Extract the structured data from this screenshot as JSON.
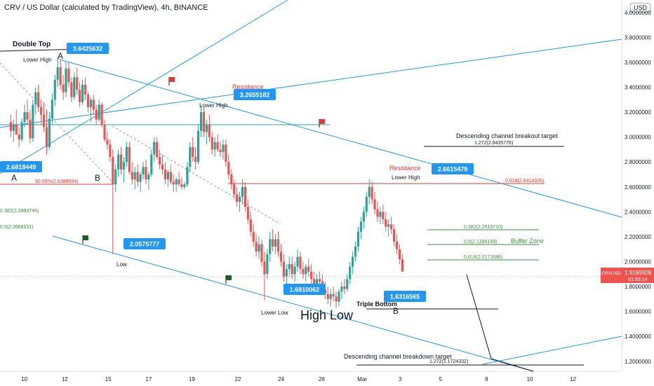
{
  "header": {
    "title": "CRV / US Dollar (calculated by TradingView), 4h, BINANCE"
  },
  "price_scale": {
    "currency": "USD"
  },
  "colors": {
    "up": "#26a69a",
    "down": "#ef5350",
    "line": "#2196f3",
    "label_bg": "#2196f3",
    "fib_green": "#388e3c",
    "fib_red": "#e53935"
  },
  "current_price": {
    "symbol": "CRVUSD",
    "value": "1.9199928",
    "countdown": "01:53:14"
  },
  "chart_data": {
    "type": "candlestick",
    "title": "CRV / US Dollar (calculated by TradingView), 4h, BINANCE",
    "ylim": [
      1.12,
      4.1
    ],
    "y_ticks": [
      "4.0000000",
      "3.8000000",
      "3.6000000",
      "3.4000000",
      "3.2000000",
      "3.0000000",
      "2.8000000",
      "2.6000000",
      "2.4000000",
      "2.2000000",
      "2.0000000",
      "1.8000000",
      "1.6000000",
      "1.4000000",
      "1.2000000"
    ],
    "x_ticks": [
      "10",
      "12",
      "15",
      "17",
      "19",
      "22",
      "24",
      "26",
      "Mar",
      "3",
      "5",
      "8",
      "10",
      "12"
    ],
    "x_tick_index": [
      5,
      20,
      36,
      51,
      67,
      84,
      100,
      115,
      130,
      144,
      159,
      176,
      192,
      208
    ],
    "x_range": [
      -4,
      226
    ],
    "ohlc": [
      [
        3.12,
        3.18,
        3.0,
        3.05
      ],
      [
        3.05,
        3.14,
        2.96,
        3.1
      ],
      [
        3.1,
        3.22,
        3.02,
        3.02
      ],
      [
        3.02,
        3.08,
        2.92,
        2.98
      ],
      [
        2.98,
        3.15,
        2.96,
        3.12
      ],
      [
        3.12,
        3.26,
        3.08,
        3.2
      ],
      [
        3.2,
        3.3,
        3.1,
        3.14
      ],
      [
        3.14,
        3.22,
        2.95,
        2.99
      ],
      [
        2.99,
        3.3,
        2.96,
        3.26
      ],
      [
        3.26,
        3.4,
        3.18,
        3.36
      ],
      [
        3.36,
        3.42,
        3.2,
        3.24
      ],
      [
        3.24,
        3.3,
        3.1,
        3.18
      ],
      [
        3.18,
        3.28,
        3.04,
        3.08
      ],
      [
        3.08,
        3.22,
        2.86,
        2.92
      ],
      [
        2.92,
        3.2,
        2.9,
        3.15
      ],
      [
        3.15,
        3.35,
        3.1,
        3.3
      ],
      [
        3.3,
        3.5,
        3.25,
        3.46
      ],
      [
        3.46,
        3.64,
        3.4,
        3.56
      ],
      [
        3.56,
        3.62,
        3.38,
        3.42
      ],
      [
        3.42,
        3.5,
        3.3,
        3.36
      ],
      [
        3.36,
        3.6,
        3.32,
        3.55
      ],
      [
        3.55,
        3.6,
        3.4,
        3.44
      ],
      [
        3.44,
        3.48,
        3.28,
        3.32
      ],
      [
        3.32,
        3.52,
        3.3,
        3.48
      ],
      [
        3.48,
        3.56,
        3.34,
        3.38
      ],
      [
        3.38,
        3.44,
        3.24,
        3.28
      ],
      [
        3.28,
        3.46,
        3.26,
        3.42
      ],
      [
        3.42,
        3.48,
        3.3,
        3.34
      ],
      [
        3.34,
        3.36,
        3.2,
        3.24
      ],
      [
        3.24,
        3.32,
        3.12,
        3.3
      ],
      [
        3.3,
        3.34,
        3.18,
        3.22
      ],
      [
        3.22,
        3.26,
        3.1,
        3.14
      ],
      [
        3.14,
        3.3,
        3.12,
        3.26
      ],
      [
        3.26,
        3.28,
        3.08,
        3.1
      ],
      [
        3.1,
        3.14,
        2.96,
        2.98
      ],
      [
        2.98,
        3.04,
        2.9,
        2.94
      ],
      [
        2.94,
        2.98,
        2.8,
        2.84
      ],
      [
        2.84,
        2.9,
        2.06,
        2.62
      ],
      [
        2.62,
        2.78,
        2.56,
        2.74
      ],
      [
        2.74,
        2.9,
        2.68,
        2.86
      ],
      [
        2.86,
        2.92,
        2.7,
        2.74
      ],
      [
        2.74,
        2.84,
        2.64,
        2.8
      ],
      [
        2.8,
        2.96,
        2.76,
        2.92
      ],
      [
        2.92,
        2.96,
        2.7,
        2.72
      ],
      [
        2.72,
        2.8,
        2.62,
        2.66
      ],
      [
        2.66,
        2.76,
        2.58,
        2.72
      ],
      [
        2.72,
        2.78,
        2.6,
        2.64
      ],
      [
        2.64,
        2.72,
        2.56,
        2.7
      ],
      [
        2.7,
        2.8,
        2.66,
        2.76
      ],
      [
        2.76,
        2.82,
        2.62,
        2.66
      ],
      [
        2.66,
        2.72,
        2.58,
        2.7
      ],
      [
        2.7,
        2.9,
        2.68,
        2.86
      ],
      [
        2.86,
        3.0,
        2.8,
        2.96
      ],
      [
        2.96,
        3.0,
        2.82,
        2.84
      ],
      [
        2.84,
        2.9,
        2.74,
        2.78
      ],
      [
        2.78,
        2.86,
        2.7,
        2.74
      ],
      [
        2.74,
        2.8,
        2.62,
        2.66
      ],
      [
        2.66,
        2.74,
        2.6,
        2.72
      ],
      [
        2.72,
        2.78,
        2.62,
        2.64
      ],
      [
        2.64,
        2.7,
        2.56,
        2.62
      ],
      [
        2.62,
        2.68,
        2.56,
        2.66
      ],
      [
        2.66,
        2.72,
        2.6,
        2.62
      ],
      [
        2.62,
        2.68,
        2.58,
        2.6
      ],
      [
        2.6,
        2.64,
        2.58,
        2.62
      ],
      [
        2.62,
        2.8,
        2.6,
        2.76
      ],
      [
        2.76,
        2.96,
        2.72,
        2.92
      ],
      [
        2.92,
        3.0,
        2.8,
        2.84
      ],
      [
        2.84,
        2.92,
        2.74,
        2.8
      ],
      [
        2.8,
        3.1,
        2.78,
        3.05
      ],
      [
        3.05,
        3.26,
        3.0,
        3.2
      ],
      [
        3.2,
        3.24,
        3.0,
        3.04
      ],
      [
        3.04,
        3.14,
        2.94,
        3.1
      ],
      [
        3.1,
        3.18,
        2.96,
        3.0
      ],
      [
        3.0,
        3.04,
        2.86,
        2.9
      ],
      [
        2.9,
        3.0,
        2.84,
        2.96
      ],
      [
        2.96,
        3.02,
        2.88,
        2.9
      ],
      [
        2.9,
        2.96,
        2.84,
        2.88
      ],
      [
        2.88,
        2.98,
        2.82,
        2.94
      ],
      [
        2.94,
        2.98,
        2.76,
        2.8
      ],
      [
        2.8,
        2.86,
        2.66,
        2.7
      ],
      [
        2.7,
        2.74,
        2.58,
        2.62
      ],
      [
        2.62,
        2.66,
        2.5,
        2.54
      ],
      [
        2.54,
        2.6,
        2.44,
        2.48
      ],
      [
        2.48,
        2.56,
        2.4,
        2.52
      ],
      [
        2.52,
        2.66,
        2.46,
        2.6
      ],
      [
        2.6,
        2.64,
        2.4,
        2.44
      ],
      [
        2.44,
        2.5,
        2.3,
        2.34
      ],
      [
        2.34,
        2.4,
        2.2,
        2.24
      ],
      [
        2.24,
        2.3,
        2.12,
        2.16
      ],
      [
        2.16,
        2.22,
        2.04,
        2.08
      ],
      [
        2.08,
        2.2,
        2.02,
        2.14
      ],
      [
        2.14,
        2.18,
        1.96,
        2.0
      ],
      [
        2.0,
        2.08,
        1.69,
        1.9
      ],
      [
        1.9,
        2.1,
        1.86,
        2.06
      ],
      [
        2.06,
        2.24,
        2.0,
        2.18
      ],
      [
        2.18,
        2.26,
        2.08,
        2.12
      ],
      [
        2.12,
        2.22,
        2.06,
        2.18
      ],
      [
        2.18,
        2.24,
        2.04,
        2.08
      ],
      [
        2.08,
        2.14,
        1.96,
        2.0
      ],
      [
        2.0,
        2.06,
        1.84,
        1.88
      ],
      [
        1.88,
        1.98,
        1.8,
        1.94
      ],
      [
        1.94,
        2.04,
        1.88,
        1.98
      ],
      [
        1.98,
        2.04,
        1.86,
        1.9
      ],
      [
        1.9,
        2.0,
        1.84,
        1.96
      ],
      [
        1.96,
        2.1,
        1.92,
        2.04
      ],
      [
        2.04,
        2.08,
        1.9,
        1.94
      ],
      [
        1.94,
        2.0,
        1.86,
        1.9
      ],
      [
        1.9,
        1.98,
        1.84,
        1.96
      ],
      [
        1.96,
        2.02,
        1.88,
        1.92
      ],
      [
        1.92,
        1.98,
        1.82,
        1.86
      ],
      [
        1.86,
        1.92,
        1.78,
        1.82
      ],
      [
        1.82,
        1.9,
        1.76,
        1.86
      ],
      [
        1.86,
        1.92,
        1.8,
        1.84
      ],
      [
        1.84,
        1.9,
        1.74,
        1.78
      ],
      [
        1.78,
        1.84,
        1.7,
        1.74
      ],
      [
        1.74,
        1.8,
        1.66,
        1.7
      ],
      [
        1.7,
        1.78,
        1.64,
        1.74
      ],
      [
        1.74,
        1.8,
        1.68,
        1.72
      ],
      [
        1.72,
        1.76,
        1.63,
        1.68
      ],
      [
        1.68,
        1.78,
        1.64,
        1.76
      ],
      [
        1.76,
        1.84,
        1.7,
        1.8
      ],
      [
        1.8,
        1.86,
        1.74,
        1.78
      ],
      [
        1.78,
        1.9,
        1.76,
        1.86
      ],
      [
        1.86,
        2.0,
        1.82,
        1.96
      ],
      [
        1.96,
        2.08,
        1.9,
        2.04
      ],
      [
        2.04,
        2.16,
        2.0,
        2.12
      ],
      [
        2.12,
        2.28,
        2.08,
        2.24
      ],
      [
        2.24,
        2.36,
        2.18,
        2.32
      ],
      [
        2.32,
        2.44,
        2.26,
        2.4
      ],
      [
        2.4,
        2.56,
        2.36,
        2.52
      ],
      [
        2.52,
        2.66,
        2.46,
        2.6
      ],
      [
        2.6,
        2.64,
        2.46,
        2.5
      ],
      [
        2.5,
        2.56,
        2.38,
        2.42
      ],
      [
        2.42,
        2.48,
        2.32,
        2.36
      ],
      [
        2.36,
        2.44,
        2.3,
        2.4
      ],
      [
        2.4,
        2.46,
        2.3,
        2.34
      ],
      [
        2.34,
        2.4,
        2.24,
        2.28
      ],
      [
        2.28,
        2.34,
        2.2,
        2.3
      ],
      [
        2.3,
        2.36,
        2.22,
        2.26
      ],
      [
        2.26,
        2.3,
        2.12,
        2.16
      ],
      [
        2.16,
        2.22,
        2.06,
        2.1
      ],
      [
        2.1,
        2.14,
        1.98,
        2.02
      ],
      [
        2.02,
        2.06,
        1.92,
        1.92
      ]
    ],
    "ohlc_start_index": 0,
    "ohlc_step": 1.02,
    "annotations": {
      "double_top": "Double Top",
      "a_top": "A",
      "a_bottom": "A",
      "b_left": "B",
      "b_right": "B",
      "lower_high_1": "Lower High",
      "lower_high_2": "Lower High",
      "lower_high_3": "Lower High",
      "resistance_1": "Resistance",
      "resistance_2": "Resistance",
      "low": "Low",
      "lower_low": "Lower Low",
      "high_low": "High Low",
      "triple_bottom": "Triple Bottom",
      "buffer_zone": "Buffer Zone",
      "breakout_target": "Descending channel breakout target",
      "breakdown_target": "Descending channel breakdown target"
    },
    "price_labels": [
      "3.6425632",
      "3.2655182",
      "2.6818449",
      "2.0575777",
      "1.6910062",
      "1.6316565",
      "2.6615479"
    ],
    "fib_levels": {
      "left_50": "50.00%(2.6388554)",
      "left_382": "0.382(2.3993746)",
      "left_05": "0.5(2.2668151)",
      "r_618_red": "0.618(2.6414035)",
      "r_382": "0.382(2.2619710)",
      "r_05": "0.5(2.1396199)",
      "r_618": "0.618(2.0172688)",
      "up_1272": "1.272(2.9435776)",
      "down_1272": "1.272(1.1724332)"
    }
  }
}
